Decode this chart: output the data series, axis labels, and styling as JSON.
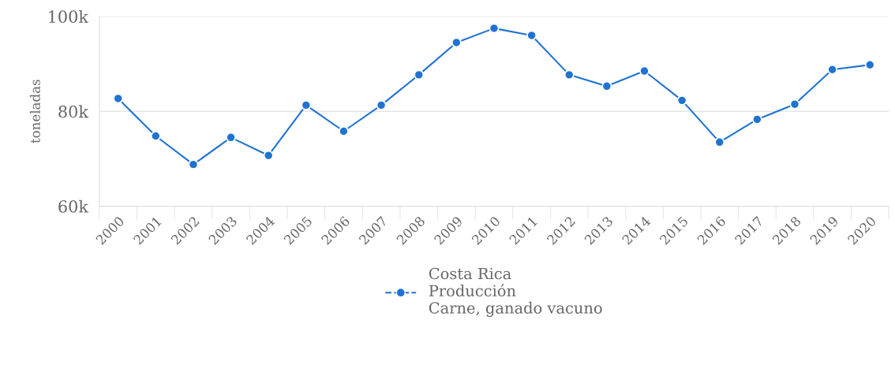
{
  "chart_data": {
    "type": "line",
    "ylabel": "toneladas",
    "categories": [
      "2000",
      "2001",
      "2002",
      "2003",
      "2004",
      "2005",
      "2006",
      "2007",
      "2008",
      "2009",
      "2010",
      "2011",
      "2012",
      "2013",
      "2014",
      "2015",
      "2016",
      "2017",
      "2018",
      "2019",
      "2020"
    ],
    "series": [
      {
        "name": "Costa Rica\nProducción\nCarne, ganado vacuno",
        "color": "#1f73d0",
        "values": [
          82700,
          74800,
          68800,
          74500,
          70700,
          81300,
          75800,
          81300,
          87700,
          94500,
          97500,
          96000,
          87700,
          85300,
          88500,
          82300,
          73500,
          78300,
          81500,
          88800,
          89800
        ]
      }
    ],
    "ylim": [
      60000,
      100000
    ],
    "yticks": [
      {
        "value": 60000,
        "label": "60k"
      },
      {
        "value": 80000,
        "label": "80k"
      },
      {
        "value": 100000,
        "label": "100k"
      }
    ],
    "grid": "y",
    "legend": "bottom",
    "marker": "circle",
    "line_style": "solid"
  }
}
